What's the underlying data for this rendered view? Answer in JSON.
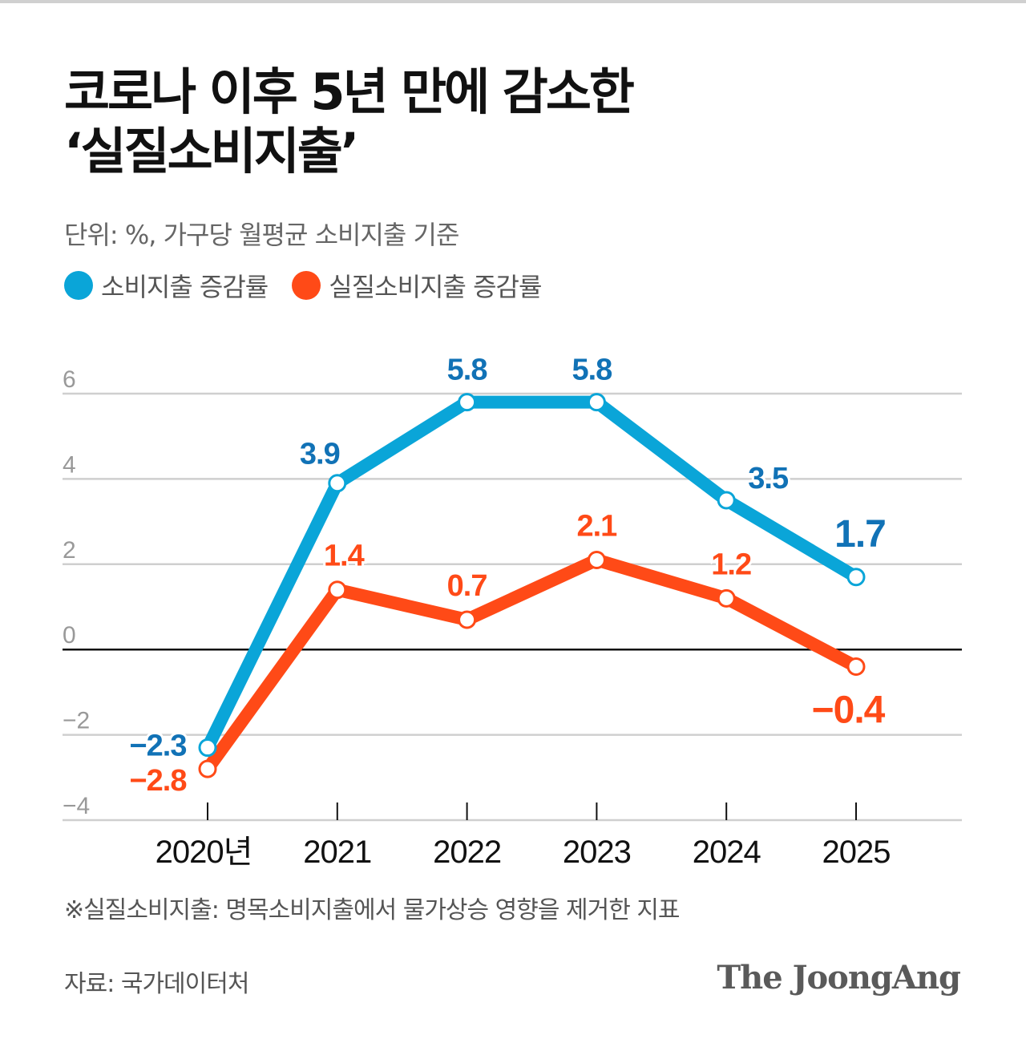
{
  "header": {
    "title_line1": "코로나 이후 5년 만에 감소한",
    "title_line2": "‘실질소비지출’",
    "unit": "단위: %, 가구당 월평균 소비지출 기준"
  },
  "chart_data": {
    "type": "line",
    "title": "코로나 이후 5년 만에 감소한 ‘실질소비지출’",
    "subtitle": "단위: %, 가구당 월평균 소비지출 기준",
    "categories": [
      "2020년",
      "2021",
      "2022",
      "2023",
      "2024",
      "2025"
    ],
    "ylim": [
      -4,
      6
    ],
    "yticks": [
      6,
      4,
      2,
      0,
      -2,
      -4
    ],
    "ytick_labels": [
      "6",
      "4",
      "2",
      "0",
      "−2",
      "−4"
    ],
    "grid": true,
    "legend": "top-left",
    "series": [
      {
        "name": "소비지출 증감률",
        "color": "#0aa5d8",
        "label_color": "#1172b6",
        "values": [
          -2.3,
          3.9,
          5.8,
          5.8,
          3.5,
          1.7
        ],
        "labels": [
          "−2.3",
          "3.9",
          "5.8",
          "5.8",
          "3.5",
          "1.7"
        ]
      },
      {
        "name": "실질소비지출 증감률",
        "color": "#ff4a17",
        "label_color": "#ff4a17",
        "values": [
          -2.8,
          1.4,
          0.7,
          2.1,
          1.2,
          -0.4
        ],
        "labels": [
          "−2.8",
          "1.4",
          "0.7",
          "2.1",
          "1.2",
          "−0.4"
        ]
      }
    ]
  },
  "footer": {
    "note": "※실질소비지출: 명목소비지출에서 물가상승 영향을 제거한 지표",
    "source": "자료: 국가데이터처",
    "logo": "The JoongAng"
  }
}
